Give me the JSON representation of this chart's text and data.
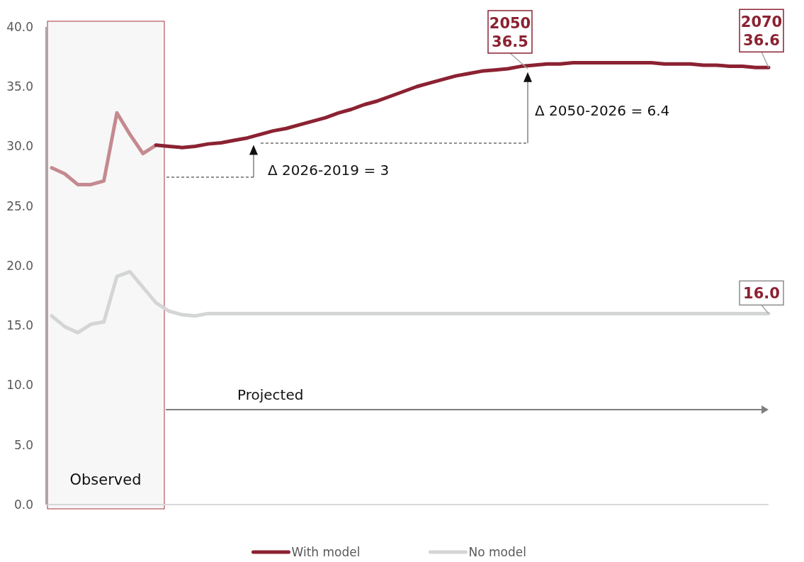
{
  "chart_data": {
    "type": "line",
    "categories": [
      null,
      null,
      null,
      null,
      null,
      null,
      null,
      null,
      null,
      null,
      null,
      null,
      null,
      null,
      null,
      null,
      null,
      null,
      null,
      null,
      null,
      null,
      null,
      null,
      null,
      null,
      null,
      null,
      null,
      null,
      null,
      null,
      null,
      null,
      null,
      null,
      null,
      null,
      null,
      null,
      null,
      null,
      null,
      null,
      null,
      null,
      null,
      null,
      null,
      null,
      null,
      null,
      null,
      null,
      null,
      null
    ],
    "series": [
      {
        "color": "#c48a90",
        "values": [
          28.2,
          27.7,
          26.8,
          26.8,
          27.1,
          32.8,
          31.0,
          29.4,
          30.1,
          null,
          null,
          null,
          null,
          null,
          null,
          null,
          null,
          null,
          null,
          null,
          null,
          null,
          null,
          null,
          null,
          null,
          null,
          null,
          null,
          null,
          null,
          null,
          null,
          null,
          null,
          null,
          null,
          null,
          null,
          null,
          null,
          null,
          null,
          null,
          null,
          null,
          null,
          null,
          null,
          null,
          null,
          null,
          null,
          null,
          null,
          null
        ]
      },
      {
        "name": "With model",
        "color": "#8b2232",
        "values": [
          null,
          null,
          null,
          null,
          null,
          null,
          null,
          null,
          30.1,
          30.0,
          29.9,
          30.0,
          30.2,
          30.3,
          30.5,
          30.7,
          31.0,
          31.3,
          31.5,
          31.8,
          32.1,
          32.4,
          32.8,
          33.1,
          33.5,
          33.8,
          34.2,
          34.6,
          35.0,
          35.3,
          35.6,
          35.9,
          36.1,
          36.3,
          36.4,
          36.5,
          36.7,
          36.8,
          36.9,
          36.9,
          37.0,
          37.0,
          37.0,
          37.0,
          37.0,
          37.0,
          37.0,
          36.9,
          36.9,
          36.9,
          36.8,
          36.8,
          36.7,
          36.7,
          36.6,
          36.6
        ]
      },
      {
        "name": "No model",
        "color": "#d4d6d5",
        "values": [
          15.8,
          14.9,
          14.4,
          15.1,
          15.3,
          19.1,
          19.5,
          18.2,
          16.9,
          16.2,
          15.9,
          15.8,
          16.0,
          16.0,
          16.0,
          16.0,
          16.0,
          16.0,
          16.0,
          16.0,
          16.0,
          16.0,
          16.0,
          16.0,
          16.0,
          16.0,
          16.0,
          16.0,
          16.0,
          16.0,
          16.0,
          16.0,
          16.0,
          16.0,
          16.0,
          16.0,
          16.0,
          16.0,
          16.0,
          16.0,
          16.0,
          16.0,
          16.0,
          16.0,
          16.0,
          16.0,
          16.0,
          16.0,
          16.0,
          16.0,
          16.0,
          16.0,
          16.0,
          16.0,
          16.0,
          16.0
        ]
      }
    ],
    "ylim": [
      0,
      40
    ],
    "yticks": [
      {
        "value": 0,
        "label": "0.0"
      },
      {
        "value": 5,
        "label": "5.0"
      },
      {
        "value": 10,
        "label": "10.0"
      },
      {
        "value": 15,
        "label": "15.0"
      },
      {
        "value": 20,
        "label": "20.0"
      },
      {
        "value": 25,
        "label": "25.0"
      },
      {
        "value": 30,
        "label": "30.0"
      },
      {
        "value": 35,
        "label": "35.0"
      },
      {
        "value": 40,
        "label": "40.0"
      }
    ],
    "tick_labels": "y",
    "grid": false,
    "legend": "bottom",
    "marker": "none",
    "line_style": "solid",
    "annotations": [
      {
        "text": "2050\n36.5",
        "y": 36.5
      },
      {
        "text": "2070\n36.6",
        "y": 36.6
      },
      {
        "text": "16.0",
        "y": 16.0
      },
      "Δ 2026-2019 = 3",
      "Δ 2050-2026 = 6.4",
      "Projected",
      "Observed"
    ]
  }
}
